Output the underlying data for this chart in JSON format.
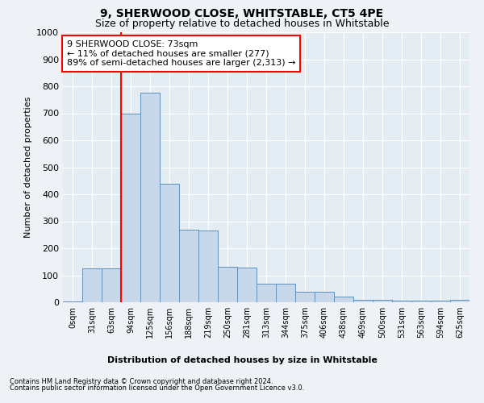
{
  "title": "9, SHERWOOD CLOSE, WHITSTABLE, CT5 4PE",
  "subtitle": "Size of property relative to detached houses in Whitstable",
  "xlabel": "Distribution of detached houses by size in Whitstable",
  "ylabel": "Number of detached properties",
  "bar_labels": [
    "0sqm",
    "31sqm",
    "63sqm",
    "94sqm",
    "125sqm",
    "156sqm",
    "188sqm",
    "219sqm",
    "250sqm",
    "281sqm",
    "313sqm",
    "344sqm",
    "375sqm",
    "406sqm",
    "438sqm",
    "469sqm",
    "500sqm",
    "531sqm",
    "563sqm",
    "594sqm",
    "625sqm"
  ],
  "bar_heights": [
    2,
    125,
    125,
    700,
    775,
    440,
    270,
    265,
    130,
    128,
    70,
    68,
    40,
    38,
    22,
    10,
    10,
    5,
    5,
    5,
    10
  ],
  "bar_color": "#c8d8ea",
  "bar_edge_color": "#6090b8",
  "vline_color": "red",
  "vline_x_index": 2.5,
  "annotation_text": "9 SHERWOOD CLOSE: 73sqm\n← 11% of detached houses are smaller (277)\n89% of semi-detached houses are larger (2,313) →",
  "annotation_box_facecolor": "white",
  "annotation_box_edgecolor": "red",
  "ylim": [
    0,
    1000
  ],
  "yticks": [
    0,
    100,
    200,
    300,
    400,
    500,
    600,
    700,
    800,
    900,
    1000
  ],
  "footer1": "Contains HM Land Registry data © Crown copyright and database right 2024.",
  "footer2": "Contains public sector information licensed under the Open Government Licence v3.0.",
  "bg_color": "#eef2f7",
  "plot_bg_color": "#e4ecf4",
  "grid_color": "white",
  "title_fontsize": 10,
  "subtitle_fontsize": 9,
  "tick_fontsize": 7,
  "ylabel_fontsize": 8,
  "xlabel_fontsize": 8,
  "annotation_fontsize": 8,
  "footer_fontsize": 6
}
